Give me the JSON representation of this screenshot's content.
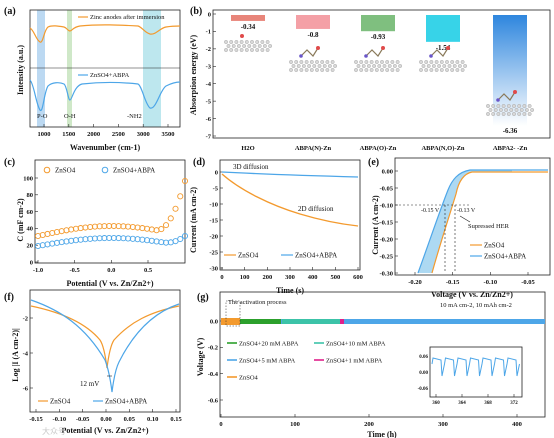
{
  "panels": {
    "a": {
      "label": "(a)",
      "top_legend": "Zinc anodes after immersion",
      "bottom_legend": "ZnSO4+ABPA",
      "annotations": {
        "po": "P-O",
        "oh": "O-H",
        "nh2": "-NH2"
      },
      "xlabel": "Wavenumber (cm-1)",
      "ylabel": "Intensity (a.u.)",
      "xticks": [
        "1000",
        "1500",
        "2000",
        "2500",
        "3000",
        "3500"
      ]
    },
    "b": {
      "label": "(b)",
      "ylabel": "Absorption energy (eV)",
      "yticks": [
        "0",
        "-1",
        "-2",
        "-3",
        "-4",
        "-5",
        "-6",
        "-7"
      ],
      "bars": [
        {
          "label": "H2O",
          "value": -0.34,
          "text": "-0.34",
          "color": "#e8857a"
        },
        {
          "label": "ABPA(N)-Zn",
          "value": -0.8,
          "text": "-0.8",
          "color": "#f4a0a6"
        },
        {
          "label": "ABPA(O)-Zn",
          "value": -0.93,
          "text": "-0.93",
          "color": "#7fbf7f"
        },
        {
          "label": "ABPA(N,O)-Zn",
          "value": -1.54,
          "text": "-1.54",
          "color": "#37d3e8"
        },
        {
          "label": "ABPA2- -Zn",
          "value": -6.36,
          "text": "-6.36",
          "color": "#3e95e8"
        }
      ]
    },
    "c": {
      "label": "(c)",
      "legend": [
        "ZnSO4",
        "ZnSO4+ABPA"
      ],
      "xlabel": "Potential (V vs. Zn/Zn2+)",
      "ylabel": "C (mF cm-2)",
      "xticks": [
        "-1.0",
        "-0.5",
        "0.0",
        "0.5"
      ],
      "yticks": [
        "0",
        "20",
        "40",
        "60",
        "80",
        "100"
      ]
    },
    "d": {
      "label": "(d)",
      "annotations": [
        "3D diffusion",
        "2D diffusion"
      ],
      "legend": [
        "ZnSO4",
        "ZnSO4+ABPA"
      ],
      "xlabel": "Time (s)",
      "ylabel": "Current (mA cm-2)",
      "xticks": [
        "0",
        "100",
        "200",
        "300",
        "400",
        "500",
        "600"
      ],
      "yticks": [
        "0",
        "-5",
        "-10",
        "-15",
        "-20",
        "-25",
        "-30"
      ]
    },
    "e": {
      "label": "(e)",
      "annotations": [
        "-0.15 V",
        "-0.13 V",
        "Supressed HER"
      ],
      "legend": [
        "ZnSO4",
        "ZnSO4+ABPA"
      ],
      "xlabel": "Voltage (V vs. Zn/Zn2+)",
      "ylabel": "Current (A cm-2)",
      "xticks": [
        "-0.20",
        "-0.15",
        "-0.10",
        "-0.05"
      ],
      "yticks": [
        "0.00",
        "-0.05",
        "-0.10",
        "-0.15",
        "-0.20",
        "-0.25",
        "-0.30"
      ]
    },
    "f": {
      "label": "(f)",
      "annotation": "12 mV",
      "legend": [
        "ZnSO4",
        "ZnSO4+ABPA"
      ],
      "xlabel": "Potential (V vs. Zn/Zn2+)",
      "ylabel": "Log |I (A cm-2)|",
      "xticks": [
        "-0.15",
        "-0.10",
        "-0.05",
        "0.00",
        "0.05",
        "0.10",
        "0.15"
      ],
      "yticks": [
        "-2",
        "-4",
        "-6"
      ]
    },
    "g": {
      "label": "(g)",
      "activation": "The activation process",
      "condition": "10 mA cm-2, 10 mAh cm-2",
      "legend": [
        "ZnSO4+20 mM ABPA",
        "ZnSO4+10 mM ABPA",
        "ZnSO4+5 mM ABPA",
        "ZnSO4+1 mM ABPA",
        "ZnSO4"
      ],
      "xlabel": "Time (h)",
      "ylabel": "Voltage (V)",
      "xticks": [
        "0",
        "100",
        "200",
        "300",
        "400"
      ],
      "yticks": [
        "0.0",
        "-0.2",
        "-0.4",
        "-0.6"
      ],
      "inset_xticks": [
        "360",
        "364",
        "368",
        "372"
      ],
      "inset_yticks": [
        "0.06",
        "0.00",
        "-0.06"
      ]
    }
  },
  "watermark": "大众号",
  "colors": {
    "orange": "#f39a2e",
    "blue": "#4da6e8",
    "green": "#2ca02c",
    "teal": "#3cc3a8",
    "magenta": "#e0208a"
  }
}
